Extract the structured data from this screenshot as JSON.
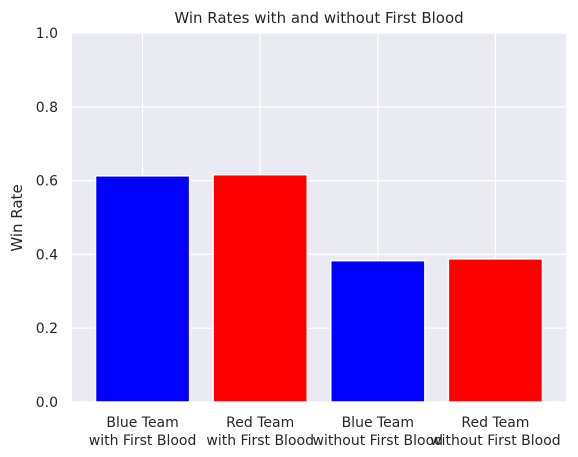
{
  "chart_data": {
    "type": "bar",
    "title": "Win Rates with and without First Blood",
    "xlabel": "",
    "ylabel": "Win Rate",
    "ylim": [
      0,
      1
    ],
    "yticks": [
      0.0,
      0.2,
      0.4,
      0.6,
      0.8,
      1.0
    ],
    "ytick_labels": [
      "0.0",
      "0.2",
      "0.4",
      "0.6",
      "0.8",
      "1.0"
    ],
    "grid": true,
    "categories": [
      [
        "Blue Team",
        "with First Blood"
      ],
      [
        "Red Team",
        "with First Blood"
      ],
      [
        "Blue Team",
        "without First Blood"
      ],
      [
        "Red Team",
        "without First Blood"
      ]
    ],
    "values": [
      0.613,
      0.616,
      0.383,
      0.388
    ],
    "colors": [
      "#0000ff",
      "#ff0000",
      "#0000ff",
      "#ff0000"
    ],
    "background_color": "#eaeaf2"
  }
}
